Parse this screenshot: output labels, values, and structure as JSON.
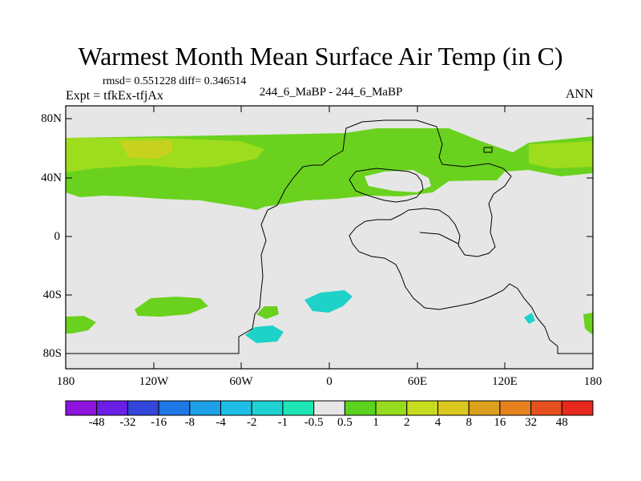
{
  "title": "Warmest Month Mean Surface Air Temp (in C)",
  "stats_line": "rmsd= 0.551228 diff= 0.346514",
  "expt_line": "Expt = tfkEx-tfjAx",
  "center_label": "244_6_MaBP - 244_6_MaBP",
  "period_label": "ANN",
  "map": {
    "background_color": "#e6e6e6",
    "lat_ticks": [
      "80N",
      "40N",
      "0",
      "40S",
      "80S"
    ],
    "lon_ticks": [
      "180",
      "120W",
      "60W",
      "0",
      "60E",
      "120E",
      "180"
    ]
  },
  "colorbar": {
    "colors": [
      "#8c14dc",
      "#6a1ee6",
      "#3246dc",
      "#1e78e6",
      "#1ea0e6",
      "#1ebee6",
      "#1ed2d2",
      "#1ee6b4",
      "#e6e6e6",
      "#5ad21e",
      "#96dc1e",
      "#c8dc1e",
      "#dcc81e",
      "#dca01e",
      "#e6821e",
      "#e6501e",
      "#e6281e"
    ],
    "labels": [
      "-48",
      "-32",
      "-16",
      "-8",
      "-4",
      "-2",
      "-1",
      "-0.5",
      "0.5",
      "1",
      "2",
      "4",
      "8",
      "16",
      "32",
      "48"
    ]
  }
}
